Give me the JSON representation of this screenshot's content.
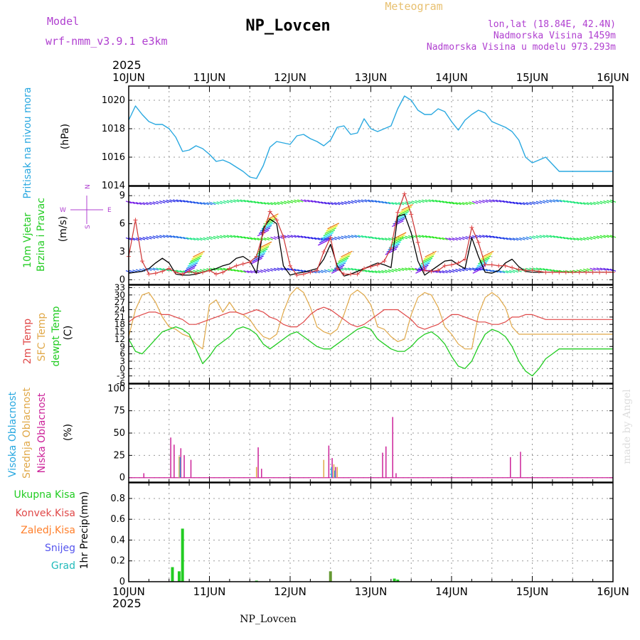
{
  "header": {
    "model_label": "Model",
    "model_name": "wrf-nmm_v3.9.1  e3km",
    "station_title": "NP_Lovcen",
    "meteogram_label": "Meteogram",
    "lonlat": "lon,lat (18.84E, 42.4N)",
    "elevation": "Nadmorska Visina 1459m",
    "model_elevation": "Nadmorska Visina u modelu 973.293m",
    "year_top": "2025",
    "year_bottom": "2025",
    "footer_station": "NP_Lovcen",
    "credit": "made by Angel"
  },
  "colors": {
    "pressure": "#29a8e0",
    "wind_label": "#22cc22",
    "temp2m": "#e04848",
    "sfc": "#e0a848",
    "dewpt": "#22cc22",
    "high_cloud": "#29a8e0",
    "mid_cloud": "#e0a848",
    "low_cloud": "#cc2299",
    "total_precip": "#22cc22",
    "conv_precip": "#e04848",
    "frz_precip": "#ff7f2a",
    "snow": "#5555ee",
    "graupel": "#22bbbb",
    "purple_text": "#b040d0",
    "grid": "#999999"
  },
  "chart_data": [
    {
      "type": "line",
      "name": "pressure",
      "ylabel_main": "Pritisak na nivou mora",
      "unit": "(hPa)",
      "ylim": [
        1014,
        1021
      ],
      "yticks": [
        1014,
        1016,
        1018,
        1020
      ],
      "x_categories": [
        "10JUN",
        "11JUN",
        "12JUN",
        "13JUN",
        "14JUN",
        "15JUN",
        "16JUN"
      ],
      "x_hours": [
        0,
        2,
        4,
        6,
        8,
        10,
        12,
        14,
        16,
        18,
        20,
        22,
        24,
        26,
        28,
        30,
        32,
        34,
        36,
        38,
        40,
        42,
        44,
        46,
        48,
        50,
        52,
        54,
        56,
        58,
        60,
        62,
        64,
        66,
        68,
        70,
        72,
        74,
        76,
        78,
        80,
        82,
        84,
        86,
        88,
        90,
        92,
        94,
        96,
        98,
        100,
        102,
        104,
        106,
        108,
        110,
        112,
        114,
        116,
        118,
        120,
        122,
        124,
        126,
        128,
        130,
        132,
        134,
        136,
        138,
        140,
        142,
        144
      ],
      "values": [
        1018.6,
        1019.6,
        1019.0,
        1018.5,
        1018.3,
        1018.3,
        1018.0,
        1017.4,
        1016.4,
        1016.5,
        1016.8,
        1016.6,
        1016.2,
        1015.7,
        1015.8,
        1015.6,
        1015.3,
        1015.0,
        1014.6,
        1014.5,
        1015.4,
        1016.7,
        1017.1,
        1017.0,
        1016.9,
        1017.5,
        1017.6,
        1017.3,
        1017.1,
        1016.8,
        1017.2,
        1018.1,
        1018.2,
        1017.6,
        1017.7,
        1018.7,
        1018.0,
        1017.8,
        1018.0,
        1018.2,
        1019.4,
        1020.3,
        1020.0,
        1019.3,
        1019.0,
        1019.0,
        1019.4,
        1019.2,
        1018.5,
        1017.9,
        1018.6,
        1019.0,
        1019.3,
        1019.1,
        1018.5,
        1018.3,
        1018.1,
        1017.8,
        1017.2,
        1016.0,
        1015.6,
        1015.8,
        1016.0,
        1015.5,
        1015.0,
        1015.0,
        1015.0,
        1015.0,
        1015.0,
        1015.0,
        1015.0,
        1015.0,
        1015.0
      ]
    },
    {
      "type": "line",
      "name": "wind",
      "ylabel_main": "10m Vjetar",
      "ylabel_sub": "Brzina i Pravac",
      "unit": "(m/s)",
      "legend_compass": [
        "N",
        "E",
        "S",
        "W"
      ],
      "ylim": [
        -0.5,
        10
      ],
      "yticks": [
        0,
        3,
        6,
        9
      ],
      "x_hours": [
        0,
        2,
        4,
        6,
        8,
        10,
        12,
        14,
        16,
        18,
        20,
        22,
        24,
        26,
        28,
        30,
        32,
        34,
        36,
        38,
        40,
        42,
        44,
        46,
        48,
        50,
        52,
        54,
        56,
        58,
        60,
        62,
        64,
        66,
        68,
        70,
        72,
        74,
        76,
        78,
        80,
        82,
        84,
        86,
        88,
        90,
        92,
        94,
        96,
        98,
        100,
        102,
        104,
        106,
        108,
        110,
        112,
        114,
        116,
        118,
        120,
        122,
        124,
        126,
        128,
        130,
        132,
        134,
        136,
        138,
        140,
        142,
        144
      ],
      "series": [
        {
          "name": "10m wind speed",
          "values": [
            2.5,
            6.4,
            2.0,
            0.6,
            0.7,
            0.9,
            1.2,
            0.8,
            0.6,
            0.9,
            0.7,
            0.8,
            1.0,
            0.6,
            0.8,
            1.2,
            1.5,
            1.7,
            1.9,
            2.5,
            5.0,
            7.3,
            6.4,
            4.6,
            1.5,
            0.5,
            0.6,
            0.8,
            1.0,
            3.0,
            4.5,
            1.2,
            0.6,
            0.6,
            0.6,
            1.2,
            1.4,
            1.6,
            2.0,
            3.4,
            7.2,
            9.2,
            7.0,
            4.0,
            1.0,
            0.9,
            1.0,
            1.5,
            1.6,
            1.8,
            2.2,
            5.6,
            4.0,
            1.6,
            1.6,
            1.5,
            1.5,
            1.3,
            1.1,
            1.0,
            1.0,
            0.9,
            0.8,
            0.8,
            0.8,
            0.8,
            0.8,
            0.8,
            0.8,
            0.8,
            0.8,
            0.8,
            0.8
          ]
        },
        {
          "name": "gust",
          "values": [
            0.7,
            0.8,
            0.9,
            1.2,
            1.8,
            2.3,
            1.8,
            0.6,
            0.5,
            0.5,
            0.6,
            0.8,
            1.0,
            1.2,
            1.5,
            1.7,
            2.3,
            2.5,
            2.0,
            0.7,
            5.5,
            6.5,
            6.0,
            1.5,
            0.5,
            0.7,
            0.8,
            1.0,
            1.2,
            2.2,
            3.8,
            1.5,
            0.4,
            0.6,
            0.9,
            1.2,
            1.5,
            1.8,
            1.6,
            1.3,
            6.8,
            7.0,
            5.0,
            2.0,
            0.5,
            1.0,
            1.5,
            2.0,
            2.1,
            1.6,
            1.2,
            4.5,
            2.5,
            0.8,
            0.7,
            1.0,
            1.8,
            2.2,
            1.4,
            0.9,
            0.8,
            0.8,
            0.8,
            0.8,
            0.8,
            0.8,
            0.8,
            0.8,
            0.8,
            0.8,
            0.8,
            0.8,
            0.8
          ]
        }
      ]
    },
    {
      "type": "line",
      "name": "temperature",
      "ylabel_main": "2m Temp",
      "ylabel_sub": "SFC Temp",
      "ylabel_sub2": "dewpt Temp",
      "unit": "(C)",
      "ylim": [
        -6,
        34
      ],
      "yticks": [
        -6,
        -3,
        0,
        3,
        6,
        9,
        12,
        15,
        18,
        21,
        24,
        27,
        30,
        33
      ],
      "x_hours": [
        0,
        2,
        4,
        6,
        8,
        10,
        12,
        14,
        16,
        18,
        20,
        22,
        24,
        26,
        28,
        30,
        32,
        34,
        36,
        38,
        40,
        42,
        44,
        46,
        48,
        50,
        52,
        54,
        56,
        58,
        60,
        62,
        64,
        66,
        68,
        70,
        72,
        74,
        76,
        78,
        80,
        82,
        84,
        86,
        88,
        90,
        92,
        94,
        96,
        98,
        100,
        102,
        104,
        106,
        108,
        110,
        112,
        114,
        116,
        118,
        120,
        122,
        124,
        126,
        128,
        130,
        132,
        134,
        136,
        138,
        140,
        142,
        144
      ],
      "series": [
        {
          "name": "2m Temp",
          "values": [
            19,
            21,
            22,
            23,
            23,
            22,
            22,
            21,
            20,
            18,
            18,
            19,
            20,
            21,
            22,
            23,
            23,
            22,
            23,
            24,
            23,
            21,
            20,
            18,
            17,
            17,
            19,
            22,
            24,
            25,
            24,
            22,
            20,
            18,
            17,
            18,
            20,
            22,
            24,
            24,
            24,
            22,
            20,
            17,
            16,
            17,
            18,
            20,
            22,
            22,
            21,
            20,
            19,
            19,
            18,
            18,
            19,
            21,
            21,
            22,
            22,
            21,
            20,
            20,
            20,
            20,
            20,
            20,
            20,
            20,
            20,
            20,
            20
          ]
        },
        {
          "name": "SFC Temp",
          "values": [
            13,
            24,
            30,
            31,
            27,
            21,
            17,
            16,
            14,
            13,
            10,
            8,
            26,
            28,
            23,
            27,
            23,
            22,
            20,
            16,
            13,
            12,
            14,
            23,
            30,
            33,
            31,
            25,
            17,
            15,
            14,
            16,
            22,
            30,
            32,
            30,
            26,
            17,
            16,
            13,
            11,
            12,
            22,
            29,
            31,
            30,
            25,
            17,
            14,
            10,
            8,
            8,
            22,
            29,
            31,
            29,
            25,
            17,
            14,
            14,
            14,
            14,
            14,
            14,
            14,
            14,
            14,
            14,
            14,
            14,
            14,
            14,
            14
          ]
        },
        {
          "name": "dewpt Temp",
          "values": [
            12,
            7,
            6,
            9,
            12,
            15,
            16,
            17,
            16,
            14,
            8,
            2,
            5,
            9,
            11,
            13,
            16,
            17,
            16,
            14,
            10,
            8,
            10,
            12,
            14,
            15,
            13,
            11,
            9,
            8,
            8,
            10,
            12,
            14,
            16,
            17,
            16,
            12,
            10,
            8,
            7,
            7,
            9,
            12,
            14,
            15,
            13,
            10,
            5,
            1,
            0,
            3,
            9,
            14,
            16,
            15,
            13,
            9,
            3,
            -1,
            -3,
            0,
            4,
            6,
            8,
            8,
            8,
            8,
            8,
            8,
            8,
            8,
            8
          ]
        }
      ]
    },
    {
      "type": "bar",
      "name": "cloud",
      "ylabel_high": "Visoka Oblacnost",
      "ylabel_mid": "Srednja Oblacnost",
      "ylabel_low": "Niska Oblacnost",
      "unit": "(%)",
      "ylim": [
        -5,
        105
      ],
      "yticks": [
        0,
        25,
        50,
        75,
        100
      ],
      "low_bars": [
        [
          4.5,
          5
        ],
        [
          12.5,
          45
        ],
        [
          13.5,
          37
        ],
        [
          15.5,
          33
        ],
        [
          16.5,
          25
        ],
        [
          18.5,
          20
        ],
        [
          38.5,
          34
        ],
        [
          39.5,
          10
        ],
        [
          59.5,
          36
        ],
        [
          60.5,
          22
        ],
        [
          61.5,
          12
        ],
        [
          75.5,
          28
        ],
        [
          76.5,
          35
        ],
        [
          78.5,
          68
        ],
        [
          79.5,
          5
        ],
        [
          113.5,
          23
        ],
        [
          116.5,
          29
        ]
      ],
      "mid_bars": [
        [
          15,
          24
        ],
        [
          38,
          12
        ],
        [
          58,
          20
        ],
        [
          61,
          15
        ],
        [
          62,
          12
        ]
      ],
      "high_bars": [
        [
          15.3,
          23
        ],
        [
          60.3,
          12
        ],
        [
          61.3,
          8
        ]
      ]
    },
    {
      "type": "bar",
      "name": "precip",
      "legend": [
        "Ukupna Kisa",
        "Konvek.Kisa",
        "Zaledj.Kisa",
        "Snijeg",
        "Grad"
      ],
      "ylabel_main": "1hr Precip",
      "unit": "(mm)",
      "ylim": [
        0,
        0.95
      ],
      "yticks": [
        0,
        0.2,
        0.4,
        0.6,
        0.8
      ],
      "total_bars": [
        [
          13,
          0.14
        ],
        [
          15,
          0.1
        ],
        [
          16,
          0.51
        ],
        [
          38,
          0.01
        ],
        [
          60,
          0.1
        ],
        [
          79,
          0.03
        ],
        [
          80,
          0.02
        ]
      ]
    }
  ]
}
